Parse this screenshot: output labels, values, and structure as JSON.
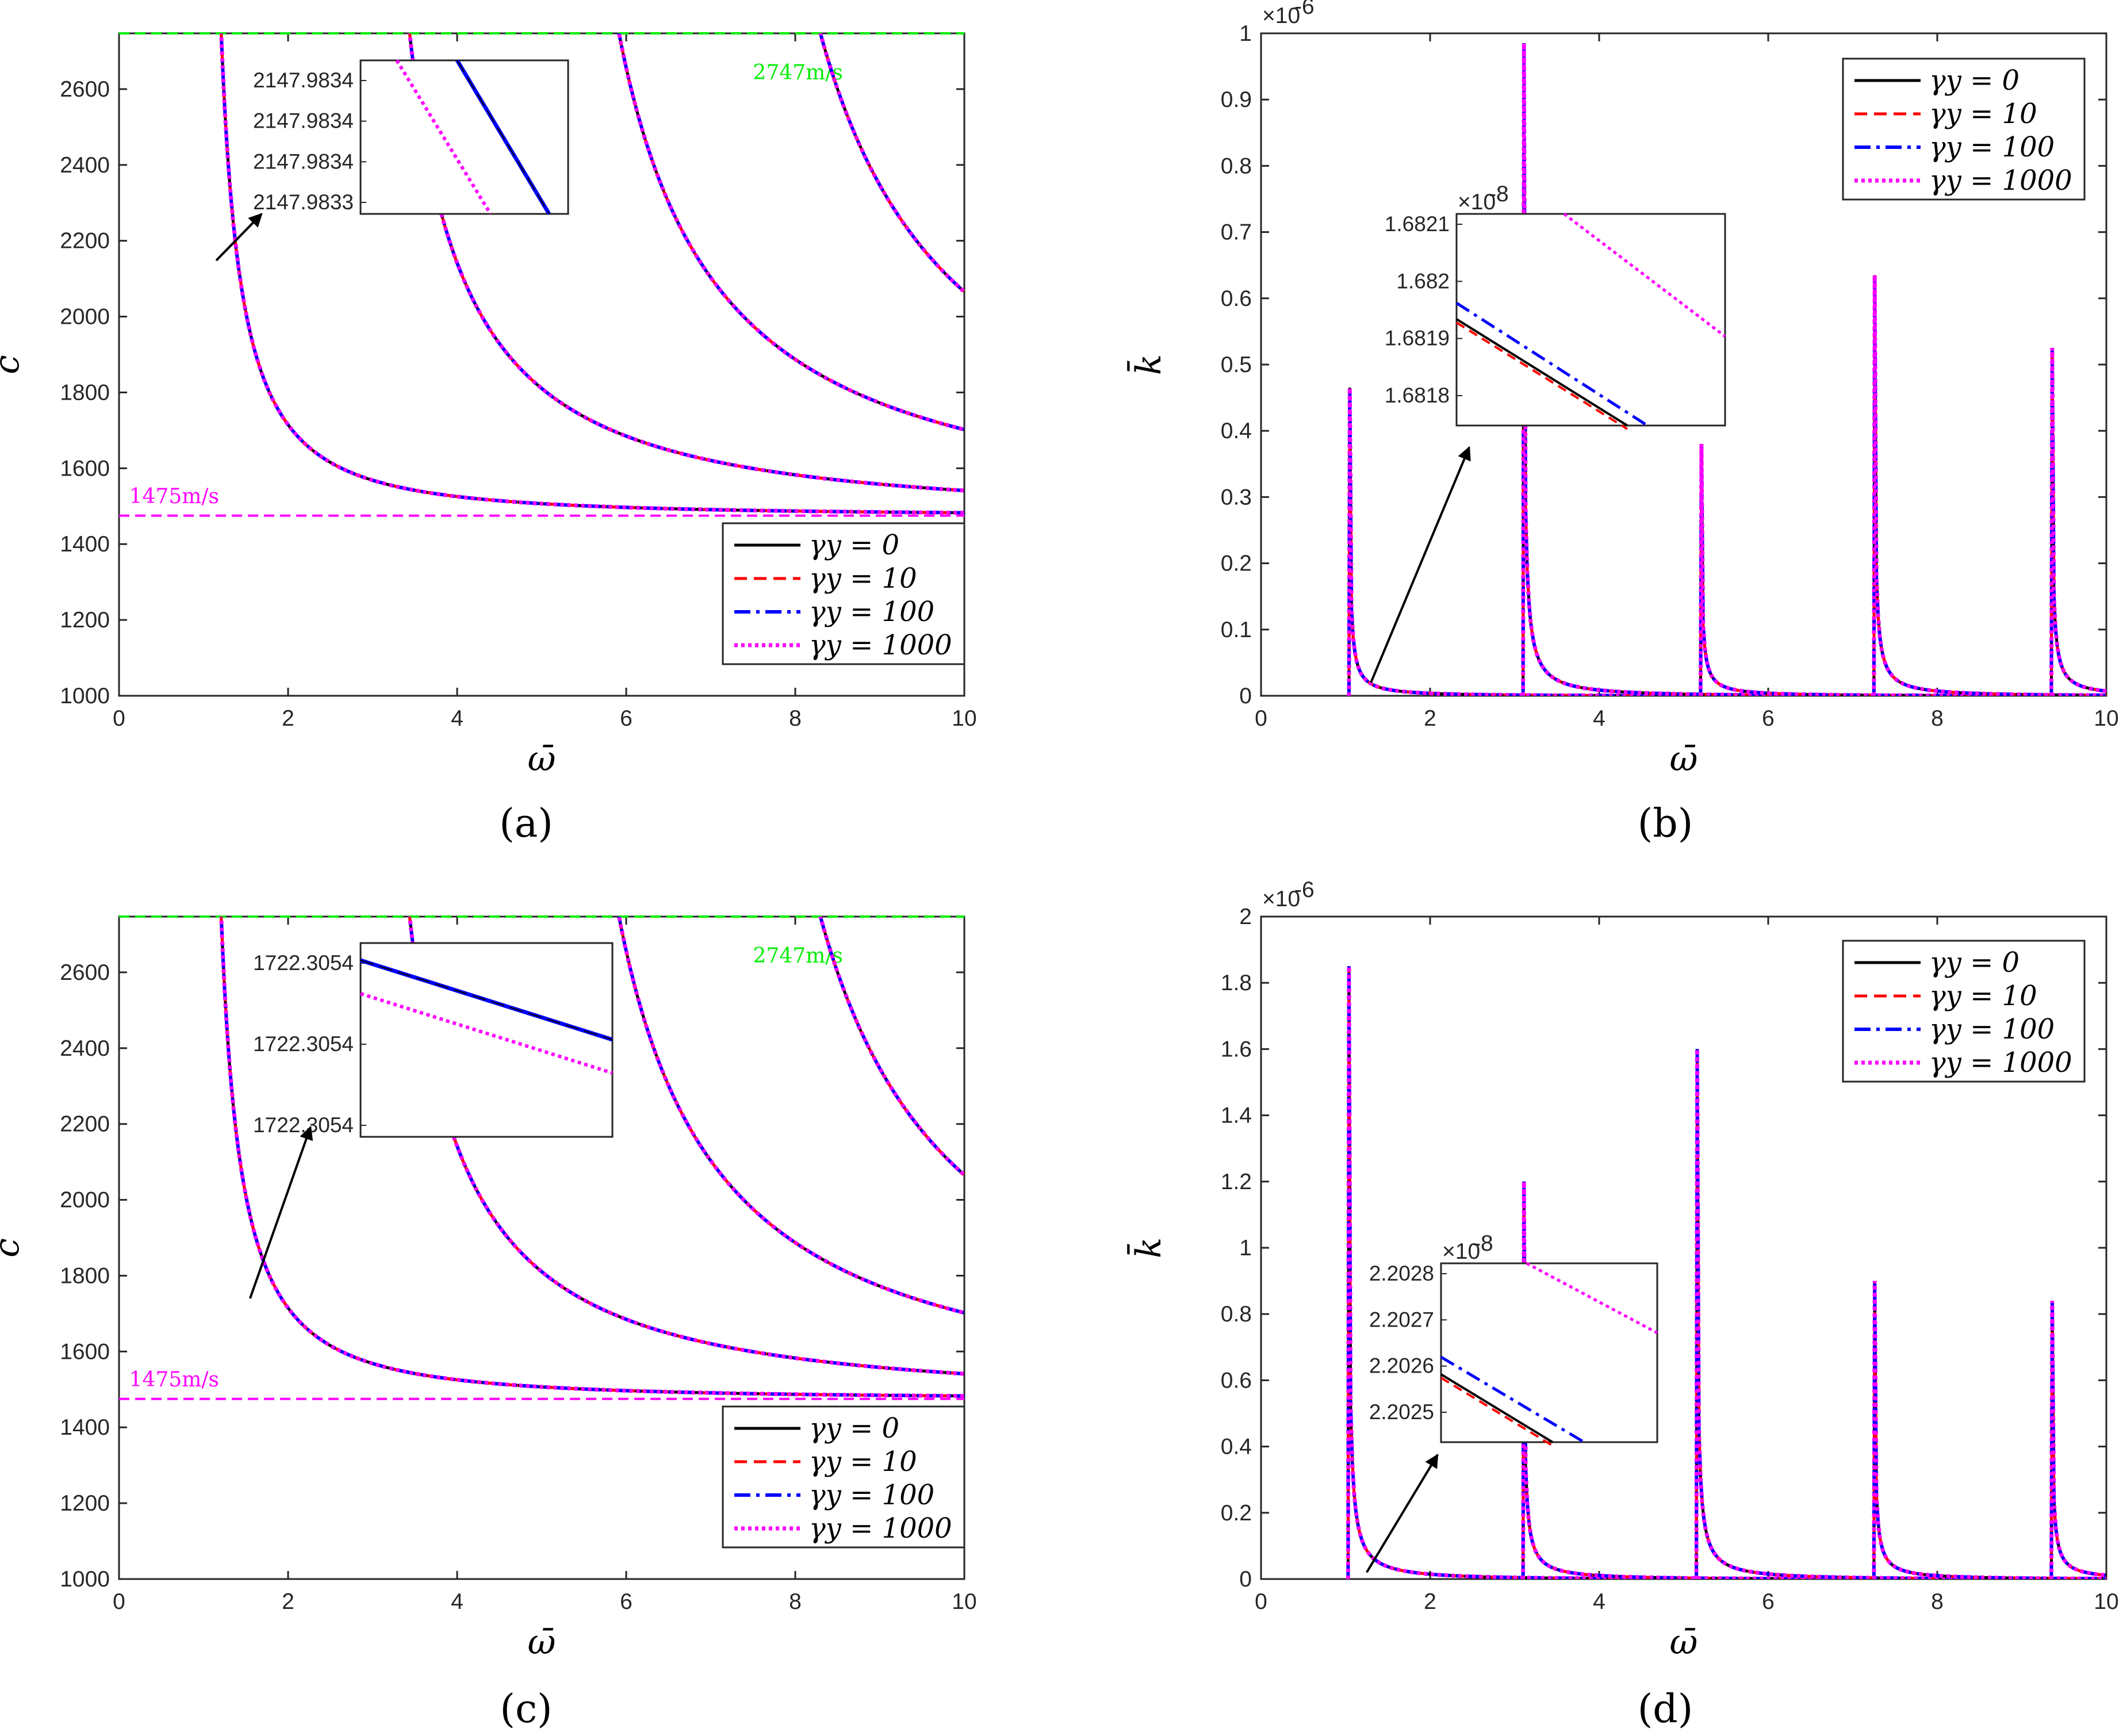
{
  "figure": {
    "captions": [
      "(a)",
      "(b)",
      "(c)",
      "(d)"
    ]
  },
  "legend": {
    "entries": [
      "γy = 0",
      "γy = 10",
      "γy = 100",
      "γy = 1000"
    ],
    "styles": [
      {
        "color": "#000000",
        "dash": "solid"
      },
      {
        "color": "#ff0000",
        "dash": "dashed"
      },
      {
        "color": "#0000ff",
        "dash": "dashdot"
      },
      {
        "color": "#ff00ff",
        "dash": "dotted"
      }
    ]
  },
  "colors": {
    "upper_ref": "#00ee00",
    "lower_ref": "#ff00ff",
    "axis": "#262626"
  },
  "chart_data": [
    {
      "id": "a",
      "type": "line",
      "xlabel": "ω̄",
      "ylabel": "c",
      "xlim": [
        0,
        10
      ],
      "ylim": [
        1000,
        2747
      ],
      "xticks": [
        "0",
        "2",
        "4",
        "6",
        "8",
        "10"
      ],
      "yticks": [
        "1000",
        "1200",
        "1400",
        "1600",
        "1800",
        "2000",
        "2200",
        "2400",
        "2600"
      ],
      "reference_lines": [
        {
          "label": "2747m/s",
          "value": 2747
        },
        {
          "label": "1475m/s",
          "value": 1475
        }
      ],
      "modes_omega_cutoff": [
        1.02,
        2.9,
        4.99,
        7.0,
        9.02
      ],
      "series_note": "All four gamma_y curves overlap: c = 1475 / sqrt(1 - (w0/w)^2)",
      "inset": {
        "yticks": [
          "2147.9834",
          "2147.9834",
          "2147.9834",
          "2147.9833"
        ],
        "zoom_point": {
          "omega": 1.15,
          "c": 2148
        }
      }
    },
    {
      "id": "b",
      "type": "line",
      "xlabel": "ω̄",
      "ylabel": "k̄",
      "exponent": "×10",
      "exponent_power": "-6",
      "xlim": [
        0,
        10
      ],
      "ylim": [
        0,
        1
      ],
      "xticks": [
        "0",
        "2",
        "4",
        "6",
        "8",
        "10"
      ],
      "yticks": [
        "0",
        "0.1",
        "0.2",
        "0.3",
        "0.4",
        "0.5",
        "0.6",
        "0.7",
        "0.8",
        "0.9",
        "1"
      ],
      "peaks": [
        {
          "omega": 1.04,
          "k": 0.465
        },
        {
          "omega": 3.1,
          "k": 0.985
        },
        {
          "omega": 5.2,
          "k": 0.38
        },
        {
          "omega": 7.25,
          "k": 0.635
        },
        {
          "omega": 9.35,
          "k": 0.525
        }
      ],
      "inset": {
        "exponent": "×10",
        "exponent_power": "-8",
        "yticks": [
          "1.6821",
          "1.682",
          "1.6819",
          "1.6818"
        ],
        "zoom_point": {
          "omega": 1.3,
          "k": 0.02
        }
      }
    },
    {
      "id": "c",
      "type": "line",
      "xlabel": "ω̄",
      "ylabel": "c",
      "xlim": [
        0,
        10
      ],
      "ylim": [
        1000,
        2747
      ],
      "xticks": [
        "0",
        "2",
        "4",
        "6",
        "8",
        "10"
      ],
      "yticks": [
        "1000",
        "1200",
        "1400",
        "1600",
        "1800",
        "2000",
        "2200",
        "2400",
        "2600"
      ],
      "reference_lines": [
        {
          "label": "2747m/s",
          "value": 2747
        },
        {
          "label": "1475m/s",
          "value": 1475
        }
      ],
      "modes_omega_cutoff": [
        1.02,
        2.9,
        4.99,
        7.0,
        9.02
      ],
      "series_note": "All four gamma_y curves overlap",
      "inset": {
        "yticks": [
          "1722.3054",
          "1722.3054",
          "1722.3054"
        ],
        "zoom_point": {
          "omega": 1.55,
          "c": 1740
        }
      }
    },
    {
      "id": "d",
      "type": "line",
      "xlabel": "ω̄",
      "ylabel": "k̄",
      "exponent": "×10",
      "exponent_power": "-6",
      "xlim": [
        0,
        10
      ],
      "ylim": [
        0,
        2
      ],
      "xticks": [
        "0",
        "2",
        "4",
        "6",
        "8",
        "10"
      ],
      "yticks": [
        "0",
        "0.2",
        "0.4",
        "0.6",
        "0.8",
        "1",
        "1.2",
        "1.4",
        "1.6",
        "1.8",
        "2"
      ],
      "peaks": [
        {
          "omega": 1.03,
          "k": 1.85
        },
        {
          "omega": 3.1,
          "k": 1.2
        },
        {
          "omega": 5.15,
          "k": 1.6
        },
        {
          "omega": 7.25,
          "k": 0.9
        },
        {
          "omega": 9.35,
          "k": 0.84
        }
      ],
      "inset": {
        "exponent": "×10",
        "exponent_power": "-8",
        "yticks": [
          "2.2028",
          "2.2027",
          "2.2026",
          "2.2025"
        ],
        "zoom_point": {
          "omega": 1.25,
          "k": 0.02
        }
      }
    }
  ]
}
